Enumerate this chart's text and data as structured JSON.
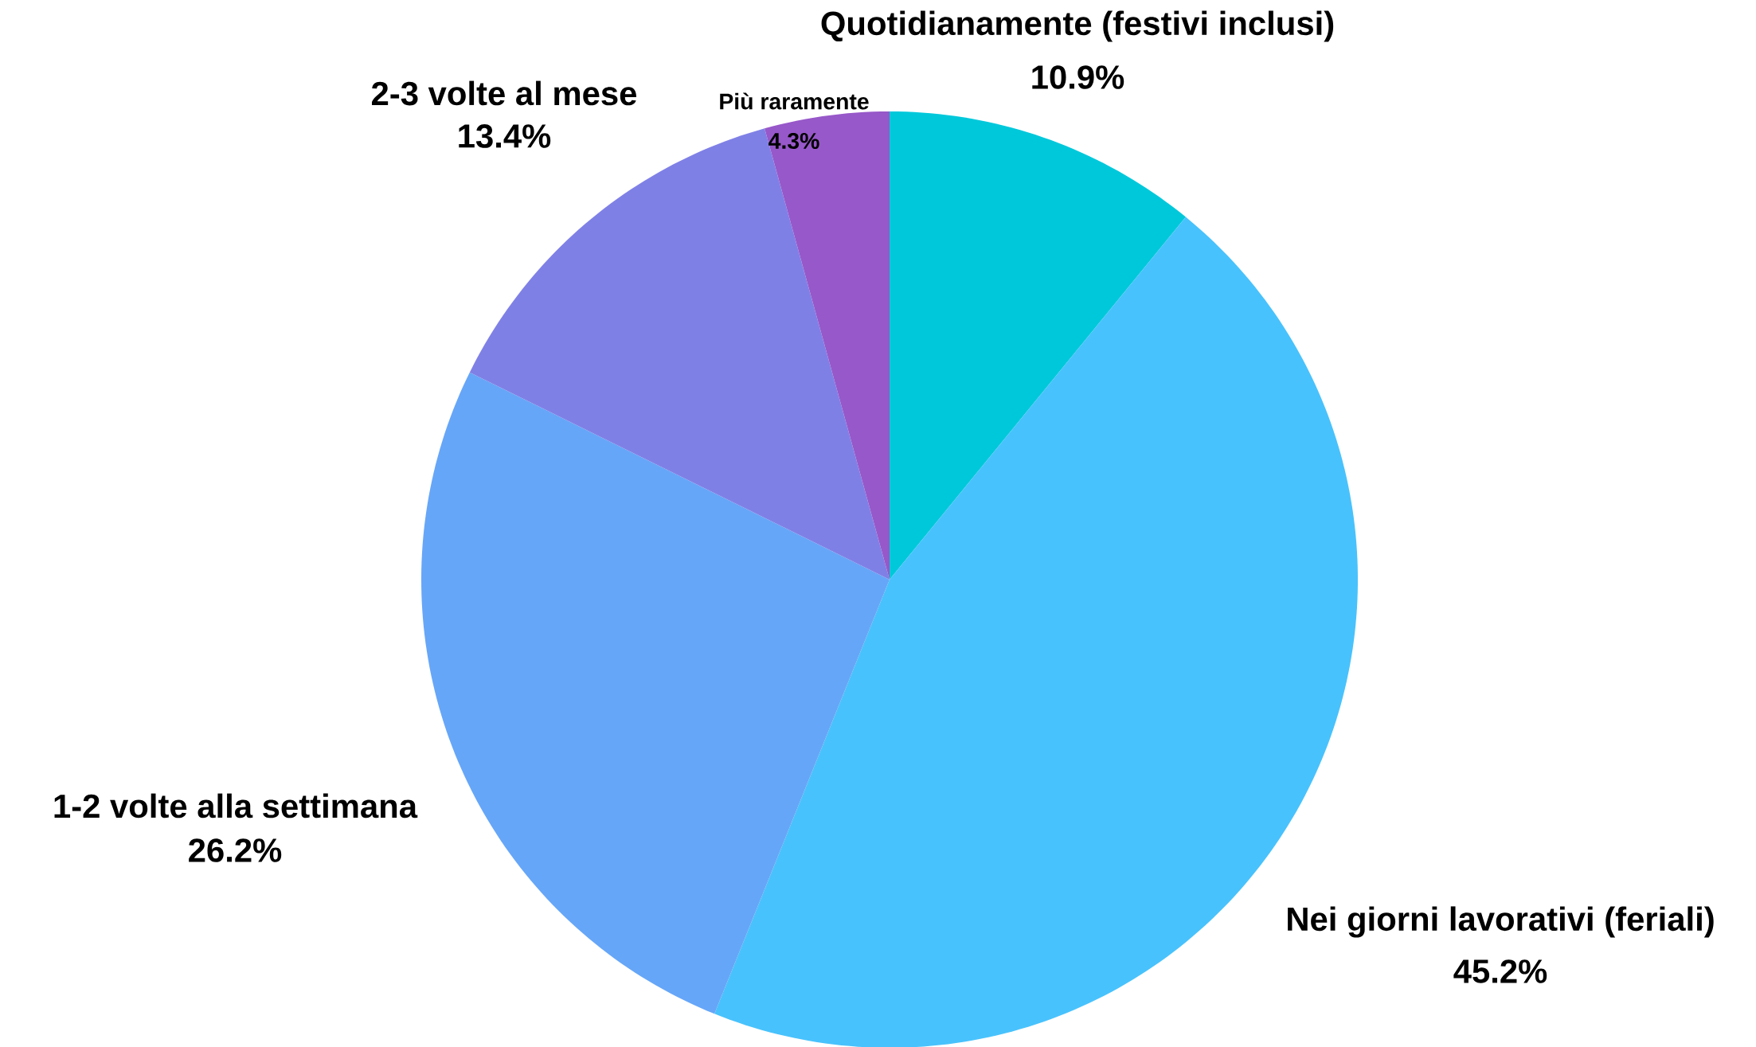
{
  "chart_data": {
    "type": "pie",
    "categories": [
      "Quotidianamente (festivi inclusi)",
      "Nei giorni lavorativi (feriali)",
      "1-2 volte alla settimana",
      "2-3 volte al mese",
      "Più raramente"
    ],
    "values": [
      10.9,
      45.2,
      26.2,
      13.4,
      4.3
    ],
    "value_labels": [
      "10.9%",
      "45.2%",
      "26.2%",
      "13.4%",
      "4.3%"
    ],
    "colors": [
      "#00c8db",
      "#48c2fc",
      "#66a6f8",
      "#7f80e6",
      "#9758c9"
    ]
  }
}
